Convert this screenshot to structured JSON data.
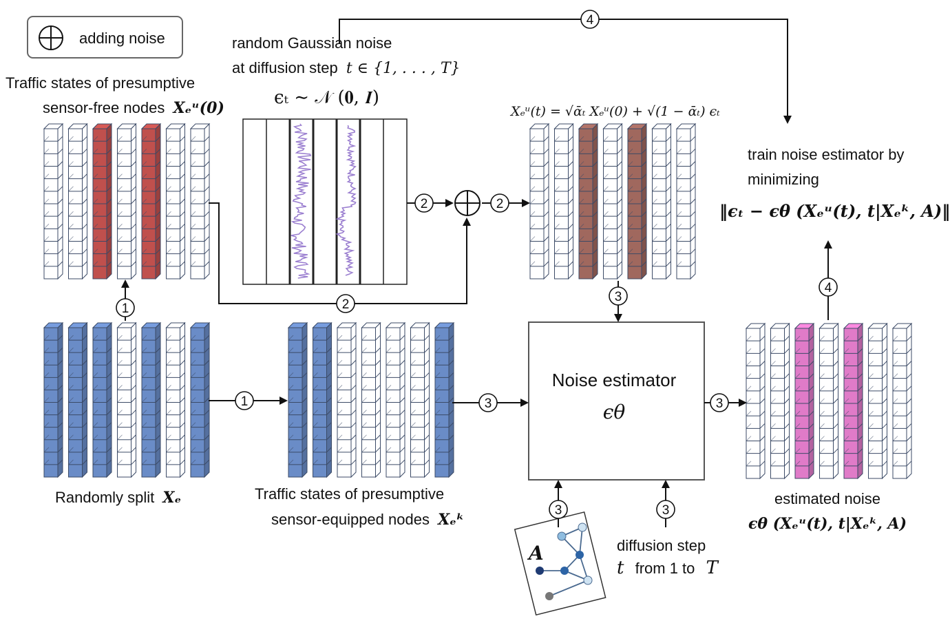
{
  "legend": {
    "symbol": "⊕",
    "label": "adding noise"
  },
  "noise_block": {
    "title_line1": "random Gaussian noise",
    "title_line2_prefix": "at diffusion step",
    "title_line2_math": "t ∈ {1, . . . , T}",
    "formula": "ϵₜ ∼ 𝒩 (𝟎, 𝑰)"
  },
  "sensor_free": {
    "label_line1": "Traffic states of presumptive",
    "label_line2_prefix": "sensor-free nodes",
    "label_line2_math": "Xₑᵘ(0)",
    "column_types": [
      "white",
      "white",
      "red",
      "white",
      "red",
      "white",
      "white"
    ]
  },
  "noisy_state": {
    "formula": "Xₑᵘ(t) = √ᾱₜ Xₑᵘ(0) + √(1 − ᾱₜ) ϵₜ",
    "column_types": [
      "white",
      "white",
      "darkred",
      "white",
      "darkred",
      "white",
      "white"
    ]
  },
  "full_state": {
    "label_prefix": "Randomly split",
    "label_math": "Xₑ",
    "column_types": [
      "blue",
      "blue",
      "blue",
      "white",
      "blue",
      "white",
      "blue"
    ]
  },
  "sensor_equipped": {
    "label_line1": "Traffic states of presumptive",
    "label_line2_prefix": "sensor-equipped nodes",
    "label_line2_math": "Xₑᵏ",
    "column_types": [
      "blue",
      "blue",
      "white",
      "white",
      "white",
      "white",
      "blue"
    ]
  },
  "estimator": {
    "title": "Noise estimator",
    "symbol": "ϵθ"
  },
  "estimated_noise": {
    "label_line1": "estimated noise",
    "label_line2": "ϵθ (Xₑᵘ(t), t|Xₑᵏ, A)",
    "column_types": [
      "white",
      "white",
      "pink",
      "white",
      "pink",
      "white",
      "white"
    ]
  },
  "objective": {
    "line1": "train noise estimator by",
    "line2": "minimizing",
    "formula": "‖ϵₜ − ϵθ (Xₑᵘ(t), t|Xₑᵏ, A)‖"
  },
  "graph": {
    "label": "A"
  },
  "diffusion_step": {
    "line1": "diffusion step",
    "line2_t": "t",
    "line2_mid": "from 1 to",
    "line2_T": "T"
  },
  "steps": {
    "one": "1",
    "two": "2",
    "three": "3",
    "four": "4"
  },
  "colors": {
    "red": "#c0504d",
    "darkred": "#a0685e",
    "blue": "#6a8cc7",
    "pink": "#e07bc8",
    "white": "#ffffff",
    "line": "#3b4a66",
    "noise_line": "#9b7fd0"
  }
}
